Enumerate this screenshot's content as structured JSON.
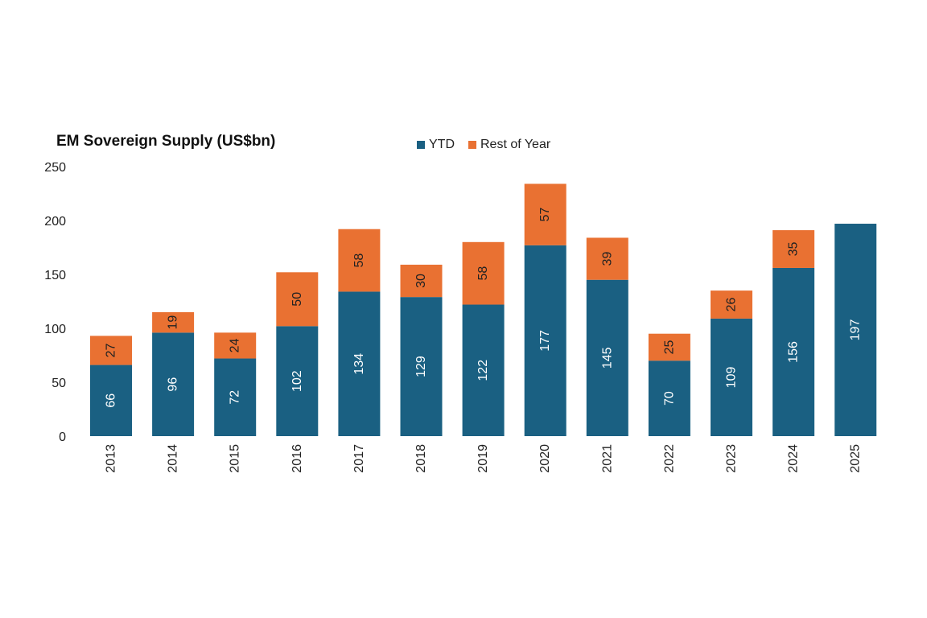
{
  "chart_data": {
    "type": "bar",
    "stacked": true,
    "title": "EM Sovereign Supply (US$bn)",
    "xlabel": "",
    "ylabel": "",
    "ylim": [
      0,
      250
    ],
    "yticks": [
      0,
      50,
      100,
      150,
      200,
      250
    ],
    "grid": false,
    "legend_position": "top-center",
    "categories": [
      "2013",
      "2014",
      "2015",
      "2016",
      "2017",
      "2018",
      "2019",
      "2020",
      "2021",
      "2022",
      "2023",
      "2024",
      "2025"
    ],
    "series": [
      {
        "name": "YTD",
        "color": "#1a6082",
        "label_color": "#ffffff",
        "values": [
          66,
          96,
          72,
          102,
          134,
          129,
          122,
          177,
          145,
          70,
          109,
          156,
          197
        ]
      },
      {
        "name": "Rest of Year",
        "color": "#e97132",
        "label_color": "#222222",
        "values": [
          27,
          19,
          24,
          50,
          58,
          30,
          58,
          57,
          39,
          25,
          26,
          35,
          null
        ]
      }
    ]
  }
}
